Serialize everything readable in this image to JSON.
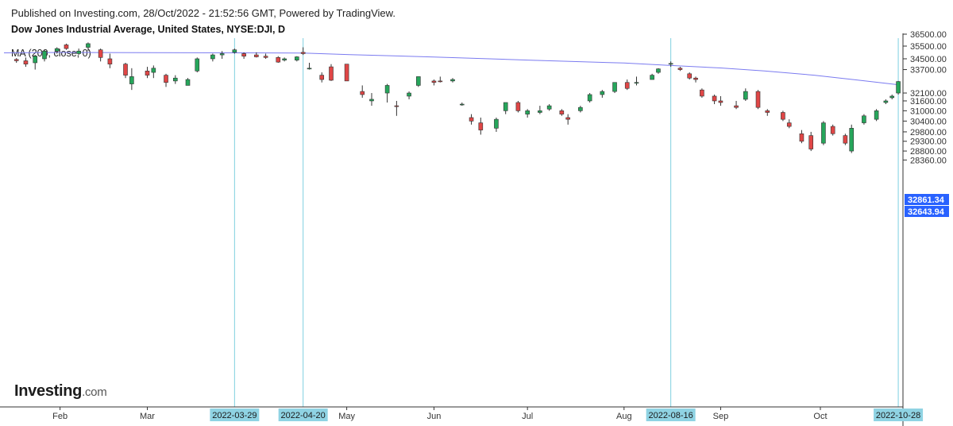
{
  "header": {
    "published": "Published on Investing.com, 28/Oct/2022 - 21:52:56 GMT, Powered by TradingView.",
    "title": "Dow Jones Industrial Average, United States, NYSE:DJI, D",
    "indicator": "MA (200, close, 0)"
  },
  "logo": {
    "main": "Investing",
    "suffix": ".com"
  },
  "colors": {
    "up": "#26a65b",
    "down": "#e04646",
    "ma": "#7b7bf0",
    "vline": "#7fd0e0",
    "highlight_label": "#8fd3e3",
    "price_tag": "#2962ff",
    "axis": "#333333"
  },
  "chart_data": {
    "type": "candlestick",
    "title": "Dow Jones Industrial Average, United States, NYSE:DJI, D",
    "y_axis": {
      "position": "right",
      "ticks": [
        36500,
        35500,
        34500,
        33700,
        32861.34,
        32643.94,
        32100,
        31600,
        31000,
        30400,
        29800,
        29300,
        28800,
        28360
      ],
      "tick_labels": [
        "36500.00",
        "35500.00",
        "34500.00",
        "33700.00",
        "32100.00",
        "31600.00",
        "31000.00",
        "30400.00",
        "29800.00",
        "29300.00",
        "28800.00",
        "28360.00"
      ]
    },
    "x_axis": {
      "months": [
        "Feb",
        "Mar",
        "May",
        "Jun",
        "Jul",
        "Aug",
        "Sep",
        "Oct"
      ],
      "highlighted_dates": [
        "2022-03-29",
        "2022-04-20",
        "2022-08-16",
        "2022-10-28"
      ]
    },
    "price_labels": [
      {
        "value": 32861.34,
        "text": "32861.34"
      },
      {
        "value": 32643.94,
        "text": "32643.94"
      }
    ],
    "ma_series": {
      "name": "MA (200, close, 0)",
      "points": [
        [
          "2022-01-14",
          34960
        ],
        [
          "2022-02-01",
          34990
        ],
        [
          "2022-03-01",
          34970
        ],
        [
          "2022-04-01",
          34960
        ],
        [
          "2022-04-20",
          34950
        ],
        [
          "2022-05-05",
          34820
        ],
        [
          "2022-06-01",
          34640
        ],
        [
          "2022-07-01",
          34400
        ],
        [
          "2022-08-01",
          34180
        ],
        [
          "2022-08-16",
          34000
        ],
        [
          "2022-09-01",
          33820
        ],
        [
          "2022-09-15",
          33600
        ],
        [
          "2022-10-01",
          33300
        ],
        [
          "2022-10-15",
          32960
        ],
        [
          "2022-10-28",
          32644
        ]
      ]
    },
    "candles": [
      [
        "2022-01-18",
        34450,
        34550,
        34200,
        34350
      ],
      [
        "2022-01-21",
        34350,
        34600,
        33900,
        34100
      ],
      [
        "2022-01-24",
        34200,
        34800,
        33700,
        34700
      ],
      [
        "2022-01-27",
        34500,
        35200,
        34300,
        35100
      ],
      [
        "2022-01-31",
        35100,
        35400,
        34900,
        35300
      ],
      [
        "2022-02-03",
        35600,
        35700,
        35200,
        35300
      ],
      [
        "2022-02-07",
        34900,
        35300,
        34800,
        35100
      ],
      [
        "2022-02-10",
        35400,
        35800,
        35100,
        35700
      ],
      [
        "2022-02-14",
        35200,
        35300,
        34300,
        34600
      ],
      [
        "2022-02-17",
        34500,
        34900,
        33800,
        34100
      ],
      [
        "2022-02-22",
        34100,
        34200,
        33100,
        33300
      ],
      [
        "2022-02-24",
        32700,
        33800,
        32300,
        33200
      ],
      [
        "2022-03-01",
        33600,
        33900,
        33100,
        33300
      ],
      [
        "2022-03-03",
        33500,
        34000,
        33100,
        33800
      ],
      [
        "2022-03-07",
        33300,
        33400,
        32500,
        32800
      ],
      [
        "2022-03-10",
        32900,
        33300,
        32700,
        33100
      ],
      [
        "2022-03-14",
        32600,
        33100,
        32600,
        33000
      ],
      [
        "2022-03-17",
        33600,
        34600,
        33500,
        34500
      ],
      [
        "2022-03-22",
        34500,
        34900,
        34300,
        34800
      ],
      [
        "2022-03-25",
        34800,
        35100,
        34500,
        34900
      ],
      [
        "2022-03-29",
        35000,
        35300,
        34900,
        35200
      ],
      [
        "2022-04-01",
        34900,
        35000,
        34500,
        34700
      ],
      [
        "2022-04-05",
        34800,
        35000,
        34600,
        34650
      ],
      [
        "2022-04-08",
        34700,
        34900,
        34500,
        34600
      ],
      [
        "2022-04-12",
        34600,
        34700,
        34200,
        34250
      ],
      [
        "2022-04-14",
        34400,
        34600,
        34300,
        34500
      ],
      [
        "2022-04-18",
        34400,
        34700,
        34300,
        34650
      ],
      [
        "2022-04-20",
        35000,
        35400,
        34800,
        34900
      ],
      [
        "2022-04-22",
        33800,
        34200,
        33700,
        33800
      ],
      [
        "2022-04-26",
        33300,
        33500,
        32800,
        33000
      ],
      [
        "2022-04-29",
        33900,
        34100,
        32900,
        32950
      ],
      [
        "2022-05-04",
        34100,
        34100,
        32900,
        32900
      ],
      [
        "2022-05-09",
        32200,
        32600,
        31800,
        32000
      ],
      [
        "2022-05-12",
        31600,
        32100,
        31300,
        31700
      ],
      [
        "2022-05-17",
        32100,
        32700,
        31500,
        32600
      ],
      [
        "2022-05-20",
        31300,
        31600,
        30700,
        31250
      ],
      [
        "2022-05-24",
        31900,
        32200,
        31700,
        32100
      ],
      [
        "2022-05-27",
        32600,
        33200,
        32500,
        33200
      ],
      [
        "2022-06-01",
        32900,
        33000,
        32600,
        32800
      ],
      [
        "2022-06-03",
        32900,
        33200,
        32800,
        32850
      ],
      [
        "2022-06-07",
        32900,
        33100,
        32800,
        33000
      ],
      [
        "2022-06-10",
        31400,
        31500,
        31300,
        31400
      ],
      [
        "2022-06-13",
        30600,
        30800,
        30200,
        30400
      ],
      [
        "2022-06-16",
        30300,
        30600,
        29650,
        29900
      ],
      [
        "2022-06-21",
        30000,
        30600,
        29800,
        30500
      ],
      [
        "2022-06-24",
        31000,
        31500,
        30800,
        31500
      ],
      [
        "2022-06-28",
        31500,
        31600,
        30900,
        31000
      ],
      [
        "2022-07-01",
        30800,
        31100,
        30600,
        31000
      ],
      [
        "2022-07-05",
        30900,
        31300,
        30800,
        31000
      ],
      [
        "2022-07-08",
        31100,
        31400,
        31000,
        31300
      ],
      [
        "2022-07-12",
        31000,
        31100,
        30700,
        30800
      ],
      [
        "2022-07-14",
        30600,
        30800,
        30200,
        30500
      ],
      [
        "2022-07-18",
        31000,
        31300,
        30900,
        31200
      ],
      [
        "2022-07-21",
        31600,
        32100,
        31500,
        32000
      ],
      [
        "2022-07-25",
        32000,
        32300,
        31800,
        32200
      ],
      [
        "2022-07-29",
        32200,
        32800,
        32100,
        32800
      ],
      [
        "2022-08-02",
        32800,
        33000,
        32300,
        32400
      ],
      [
        "2022-08-05",
        32800,
        33200,
        32600,
        32800
      ],
      [
        "2022-08-10",
        33000,
        33400,
        33000,
        33300
      ],
      [
        "2022-08-12",
        33500,
        33800,
        33400,
        33750
      ],
      [
        "2022-08-16",
        34100,
        34300,
        33900,
        34150
      ],
      [
        "2022-08-19",
        33800,
        33900,
        33600,
        33700
      ],
      [
        "2022-08-22",
        33400,
        33500,
        33000,
        33100
      ],
      [
        "2022-08-24",
        33100,
        33200,
        32800,
        33000
      ],
      [
        "2022-08-26",
        32300,
        32400,
        31800,
        31900
      ],
      [
        "2022-08-30",
        31900,
        32000,
        31400,
        31600
      ],
      [
        "2022-09-01",
        31600,
        31900,
        31300,
        31500
      ],
      [
        "2022-09-06",
        31300,
        31600,
        31100,
        31200
      ],
      [
        "2022-09-09",
        31700,
        32400,
        31600,
        32200
      ],
      [
        "2022-09-13",
        32200,
        32300,
        31100,
        31200
      ],
      [
        "2022-09-16",
        31000,
        31100,
        30700,
        30900
      ],
      [
        "2022-09-21",
        30900,
        31000,
        30400,
        30500
      ],
      [
        "2022-09-23",
        30300,
        30500,
        30000,
        30100
      ],
      [
        "2022-09-27",
        29700,
        29900,
        29200,
        29300
      ],
      [
        "2022-09-30",
        29600,
        29800,
        28800,
        28900
      ],
      [
        "2022-10-04",
        29200,
        30400,
        29100,
        30300
      ],
      [
        "2022-10-07",
        30100,
        30200,
        29600,
        29700
      ],
      [
        "2022-10-11",
        29600,
        29700,
        29100,
        29200
      ],
      [
        "2022-10-13",
        28800,
        30200,
        28700,
        30000
      ],
      [
        "2022-10-17",
        30300,
        30800,
        30200,
        30700
      ],
      [
        "2022-10-21",
        30500,
        31100,
        30400,
        31000
      ],
      [
        "2022-10-24",
        31500,
        31700,
        31400,
        31600
      ],
      [
        "2022-10-26",
        31800,
        32000,
        31700,
        31900
      ],
      [
        "2022-10-28",
        32100,
        32900,
        32000,
        32861
      ]
    ]
  }
}
